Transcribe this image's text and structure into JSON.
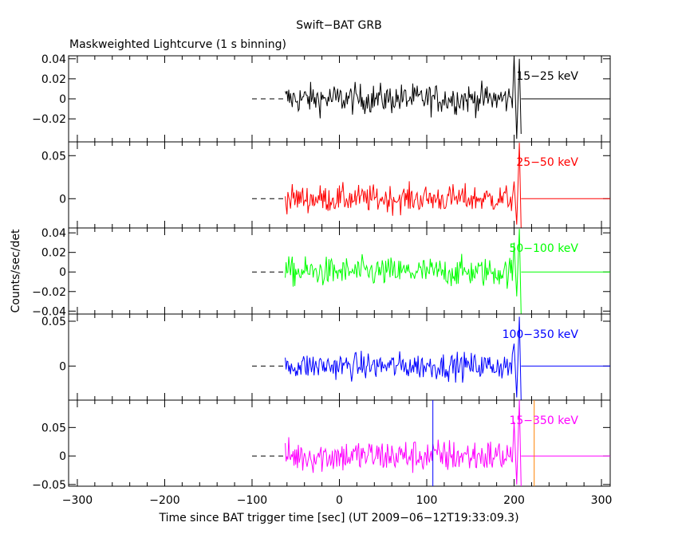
{
  "chart_data": {
    "type": "line",
    "title": "Swift−BAT GRB",
    "subtitle": "Maskweighted Lightcurve (1 s binning)",
    "xlabel": "Time since BAT trigger time [sec] (UT 2009−06−12T19:33:09.3)",
    "ylabel": "Counts/sec/det",
    "xlim": [
      -310,
      310
    ],
    "x_ticks": [
      -300,
      -200,
      -100,
      0,
      100,
      200,
      300
    ],
    "x_tick_labels": [
      "−300",
      "−200",
      "−100",
      "0",
      "100",
      "200",
      "300"
    ],
    "data_start": -62,
    "data_end": 208,
    "dashed_from": -100,
    "panels": [
      {
        "label": "15−25 keV",
        "color": "#000000",
        "ylim": [
          -0.043,
          0.043
        ],
        "yticks": [
          0.04,
          0.02,
          0,
          -0.02
        ],
        "ytick_labels": [
          "0.04",
          "0.02",
          "0",
          "−0.02"
        ],
        "noise_sigma": 0.0075,
        "spikes": [
          [
            200,
            0.043
          ],
          [
            203,
            -0.04
          ],
          [
            206,
            0.04
          ],
          [
            208,
            -0.035
          ]
        ],
        "markers": []
      },
      {
        "label": "25−50 keV",
        "color": "#ff0000",
        "ylim": [
          -0.034,
          0.066
        ],
        "yticks": [
          0.05,
          0
        ],
        "ytick_labels": [
          "0.05",
          "0"
        ],
        "noise_sigma": 0.008,
        "spikes": [
          [
            200,
            0.02
          ],
          [
            203,
            -0.03
          ],
          [
            206,
            0.065
          ],
          [
            208,
            -0.034
          ]
        ],
        "markers": []
      },
      {
        "label": "50−100 keV",
        "color": "#00ff00",
        "ylim": [
          -0.043,
          0.045
        ],
        "yticks": [
          0.04,
          0.02,
          0,
          -0.02,
          -0.04
        ],
        "ytick_labels": [
          "0.04",
          "0.02",
          "0",
          "−0.02",
          "−0.04"
        ],
        "noise_sigma": 0.0075,
        "spikes": [
          [
            200,
            0.03
          ],
          [
            203,
            -0.025
          ],
          [
            206,
            0.044
          ],
          [
            208,
            -0.043
          ]
        ],
        "markers": []
      },
      {
        "label": "100−350 keV",
        "color": "#0000ff",
        "ylim": [
          -0.038,
          0.058
        ],
        "yticks": [
          0.05,
          0
        ],
        "ytick_labels": [
          "0.05",
          "0"
        ],
        "noise_sigma": 0.0075,
        "spikes": [
          [
            200,
            0.025
          ],
          [
            203,
            -0.035
          ],
          [
            206,
            0.055
          ],
          [
            208,
            -0.038
          ]
        ],
        "markers": []
      },
      {
        "label": "15−350 keV",
        "color": "#ff00ff",
        "ylim": [
          -0.053,
          0.098
        ],
        "yticks": [
          0.05,
          0,
          -0.05
        ],
        "ytick_labels": [
          "0.05",
          "0",
          "−0.05"
        ],
        "noise_sigma": 0.015,
        "spikes": [
          [
            200,
            0.06
          ],
          [
            203,
            -0.05
          ],
          [
            206,
            0.098
          ],
          [
            208,
            -0.053
          ]
        ],
        "markers": [
          {
            "x": 107,
            "color": "#0000ff"
          },
          {
            "x": 223,
            "color": "#ff8000"
          }
        ]
      }
    ]
  }
}
